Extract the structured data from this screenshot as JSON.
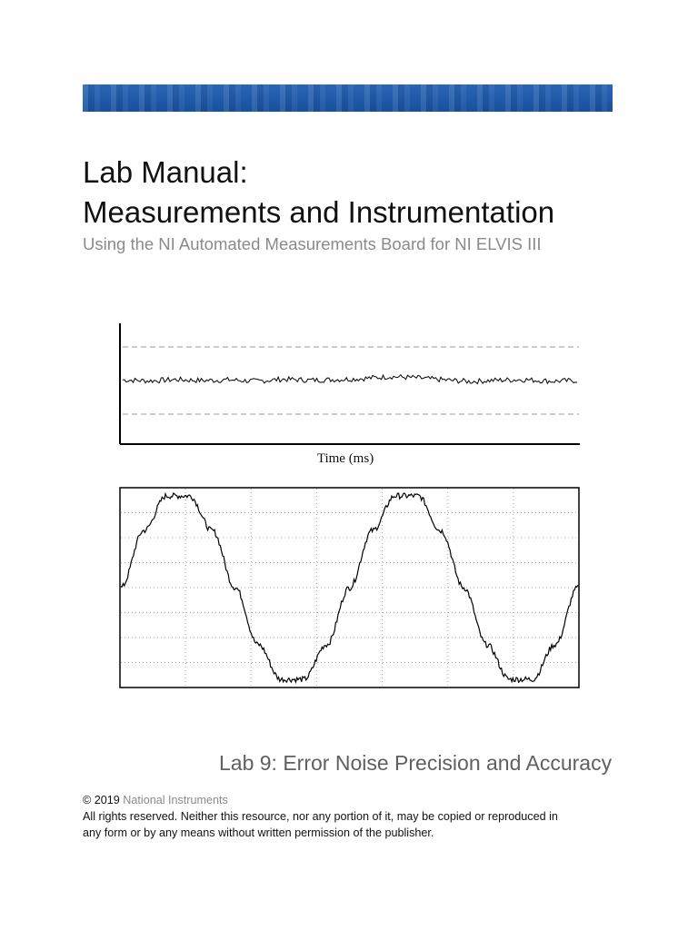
{
  "cover": {
    "title_line1": "Lab Manual:",
    "title_line2": "Measurements and Instrumentation",
    "subtitle": "Using the NI Automated Measurements Board for NI ELVIS III",
    "lab_title": "Lab 9: Error Noise Precision and Accuracy"
  },
  "footer": {
    "copyright_symbol_year": "© 2019",
    "publisher": "National Instruments",
    "rights_line1": "All rights reserved. Neither this resource, nor any portion of it, may be copied or reproduced in",
    "rights_line2": "any form or by any means without written permission of the publisher."
  },
  "chart_data": [
    {
      "type": "line",
      "title": "",
      "xlabel": "Time (ms)",
      "ylabel": "",
      "description_values": "noisy flat signal between two dashed reference limits",
      "grid": false,
      "series": [
        {
          "values": [
            0.02,
            -0.01,
            0.03,
            0.0,
            0.02,
            -0.02,
            0.04,
            0.01,
            0.03,
            0.06,
            0.12,
            0.08,
            0.02,
            -0.03,
            0.01,
            0.03,
            -0.02,
            0.0
          ]
        }
      ],
      "reference_lines": [
        1,
        -1
      ],
      "ylim": [
        -1.5,
        1.5
      ]
    },
    {
      "type": "line",
      "title": "",
      "xlabel": "",
      "ylabel": "",
      "grid": true,
      "series": [
        {
          "values": [
            0.0,
            0.59,
            0.95,
            0.95,
            0.59,
            0.0,
            -0.59,
            -0.95,
            -0.95,
            -0.59,
            0.0,
            0.59,
            0.95,
            0.95,
            0.59,
            0.0,
            -0.59,
            -0.95,
            -0.95,
            -0.59,
            0.0
          ]
        }
      ],
      "ylim": [
        -1.1,
        1.1
      ]
    }
  ]
}
